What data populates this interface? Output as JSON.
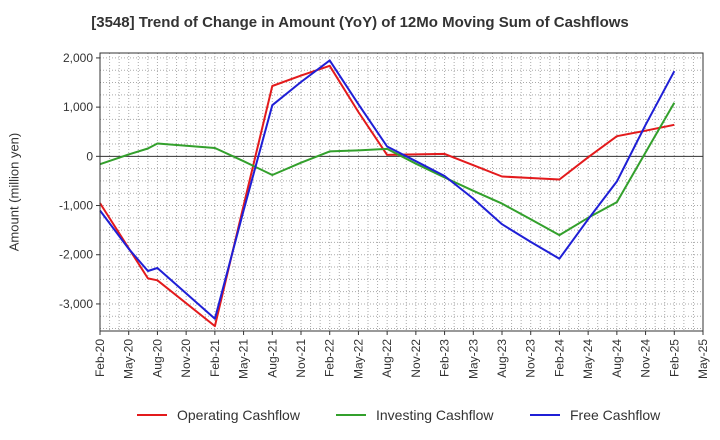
{
  "chart_data": {
    "type": "line",
    "title": "[3548]  Trend of Change in Amount (YoY) of 12Mo Moving Sum of Cashflows",
    "xlabel": "",
    "ylabel": "Amount (million yen)",
    "ylim": [
      -3550,
      2100
    ],
    "yticks": [
      2000,
      1000,
      0,
      -1000,
      -2000,
      -3000
    ],
    "ytick_labels": [
      "2,000",
      "1,000",
      "0",
      "-1,000",
      "-2,000",
      "-3,000"
    ],
    "x_ticks": [
      "Feb-20",
      "May-20",
      "Aug-20",
      "Nov-20",
      "Feb-21",
      "May-21",
      "Aug-21",
      "Nov-21",
      "Feb-22",
      "May-22",
      "Aug-22",
      "Nov-22",
      "Feb-23",
      "May-23",
      "Aug-23",
      "Nov-23",
      "Feb-24",
      "May-24",
      "Aug-24",
      "Nov-24",
      "Feb-25",
      "May-25"
    ],
    "x_index_range": [
      0,
      63
    ],
    "series": [
      {
        "name": "Operating Cashflow",
        "color": "#e31a1c",
        "x": [
          0,
          5,
          6,
          12,
          15,
          18,
          21,
          24,
          27,
          30,
          33,
          36,
          39,
          42,
          45,
          48,
          51,
          54,
          57,
          60
        ],
        "values": [
          -950,
          -2480,
          -2520,
          -3450,
          -1000,
          1430,
          1640,
          1840,
          900,
          30,
          40,
          50,
          -180,
          -410,
          -440,
          -470,
          -20,
          410,
          520,
          640
        ]
      },
      {
        "name": "Investing Cashflow",
        "color": "#33a02c",
        "x": [
          0,
          3,
          5,
          6,
          12,
          15,
          18,
          21,
          24,
          27,
          30,
          33,
          36,
          39,
          42,
          45,
          48,
          51,
          54,
          57,
          60
        ],
        "values": [
          -160,
          40,
          160,
          260,
          170,
          -100,
          -380,
          -130,
          100,
          120,
          150,
          -150,
          -430,
          -700,
          -960,
          -1280,
          -1600,
          -1250,
          -930,
          80,
          1090
        ]
      },
      {
        "name": "Free Cashflow",
        "color": "#1f1fd6",
        "x": [
          0,
          3,
          5,
          6,
          12,
          15,
          18,
          21,
          24,
          27,
          30,
          33,
          36,
          39,
          42,
          45,
          48,
          51,
          54,
          57,
          60
        ],
        "values": [
          -1100,
          -1880,
          -2330,
          -2270,
          -3300,
          -1100,
          1040,
          1510,
          1950,
          1060,
          200,
          -100,
          -400,
          -860,
          -1380,
          -1740,
          -2080,
          -1280,
          -510,
          640,
          1730
        ]
      }
    ],
    "legend": [
      "Operating Cashflow",
      "Investing Cashflow",
      "Free Cashflow"
    ],
    "legend_position": "bottom",
    "grid": true
  }
}
